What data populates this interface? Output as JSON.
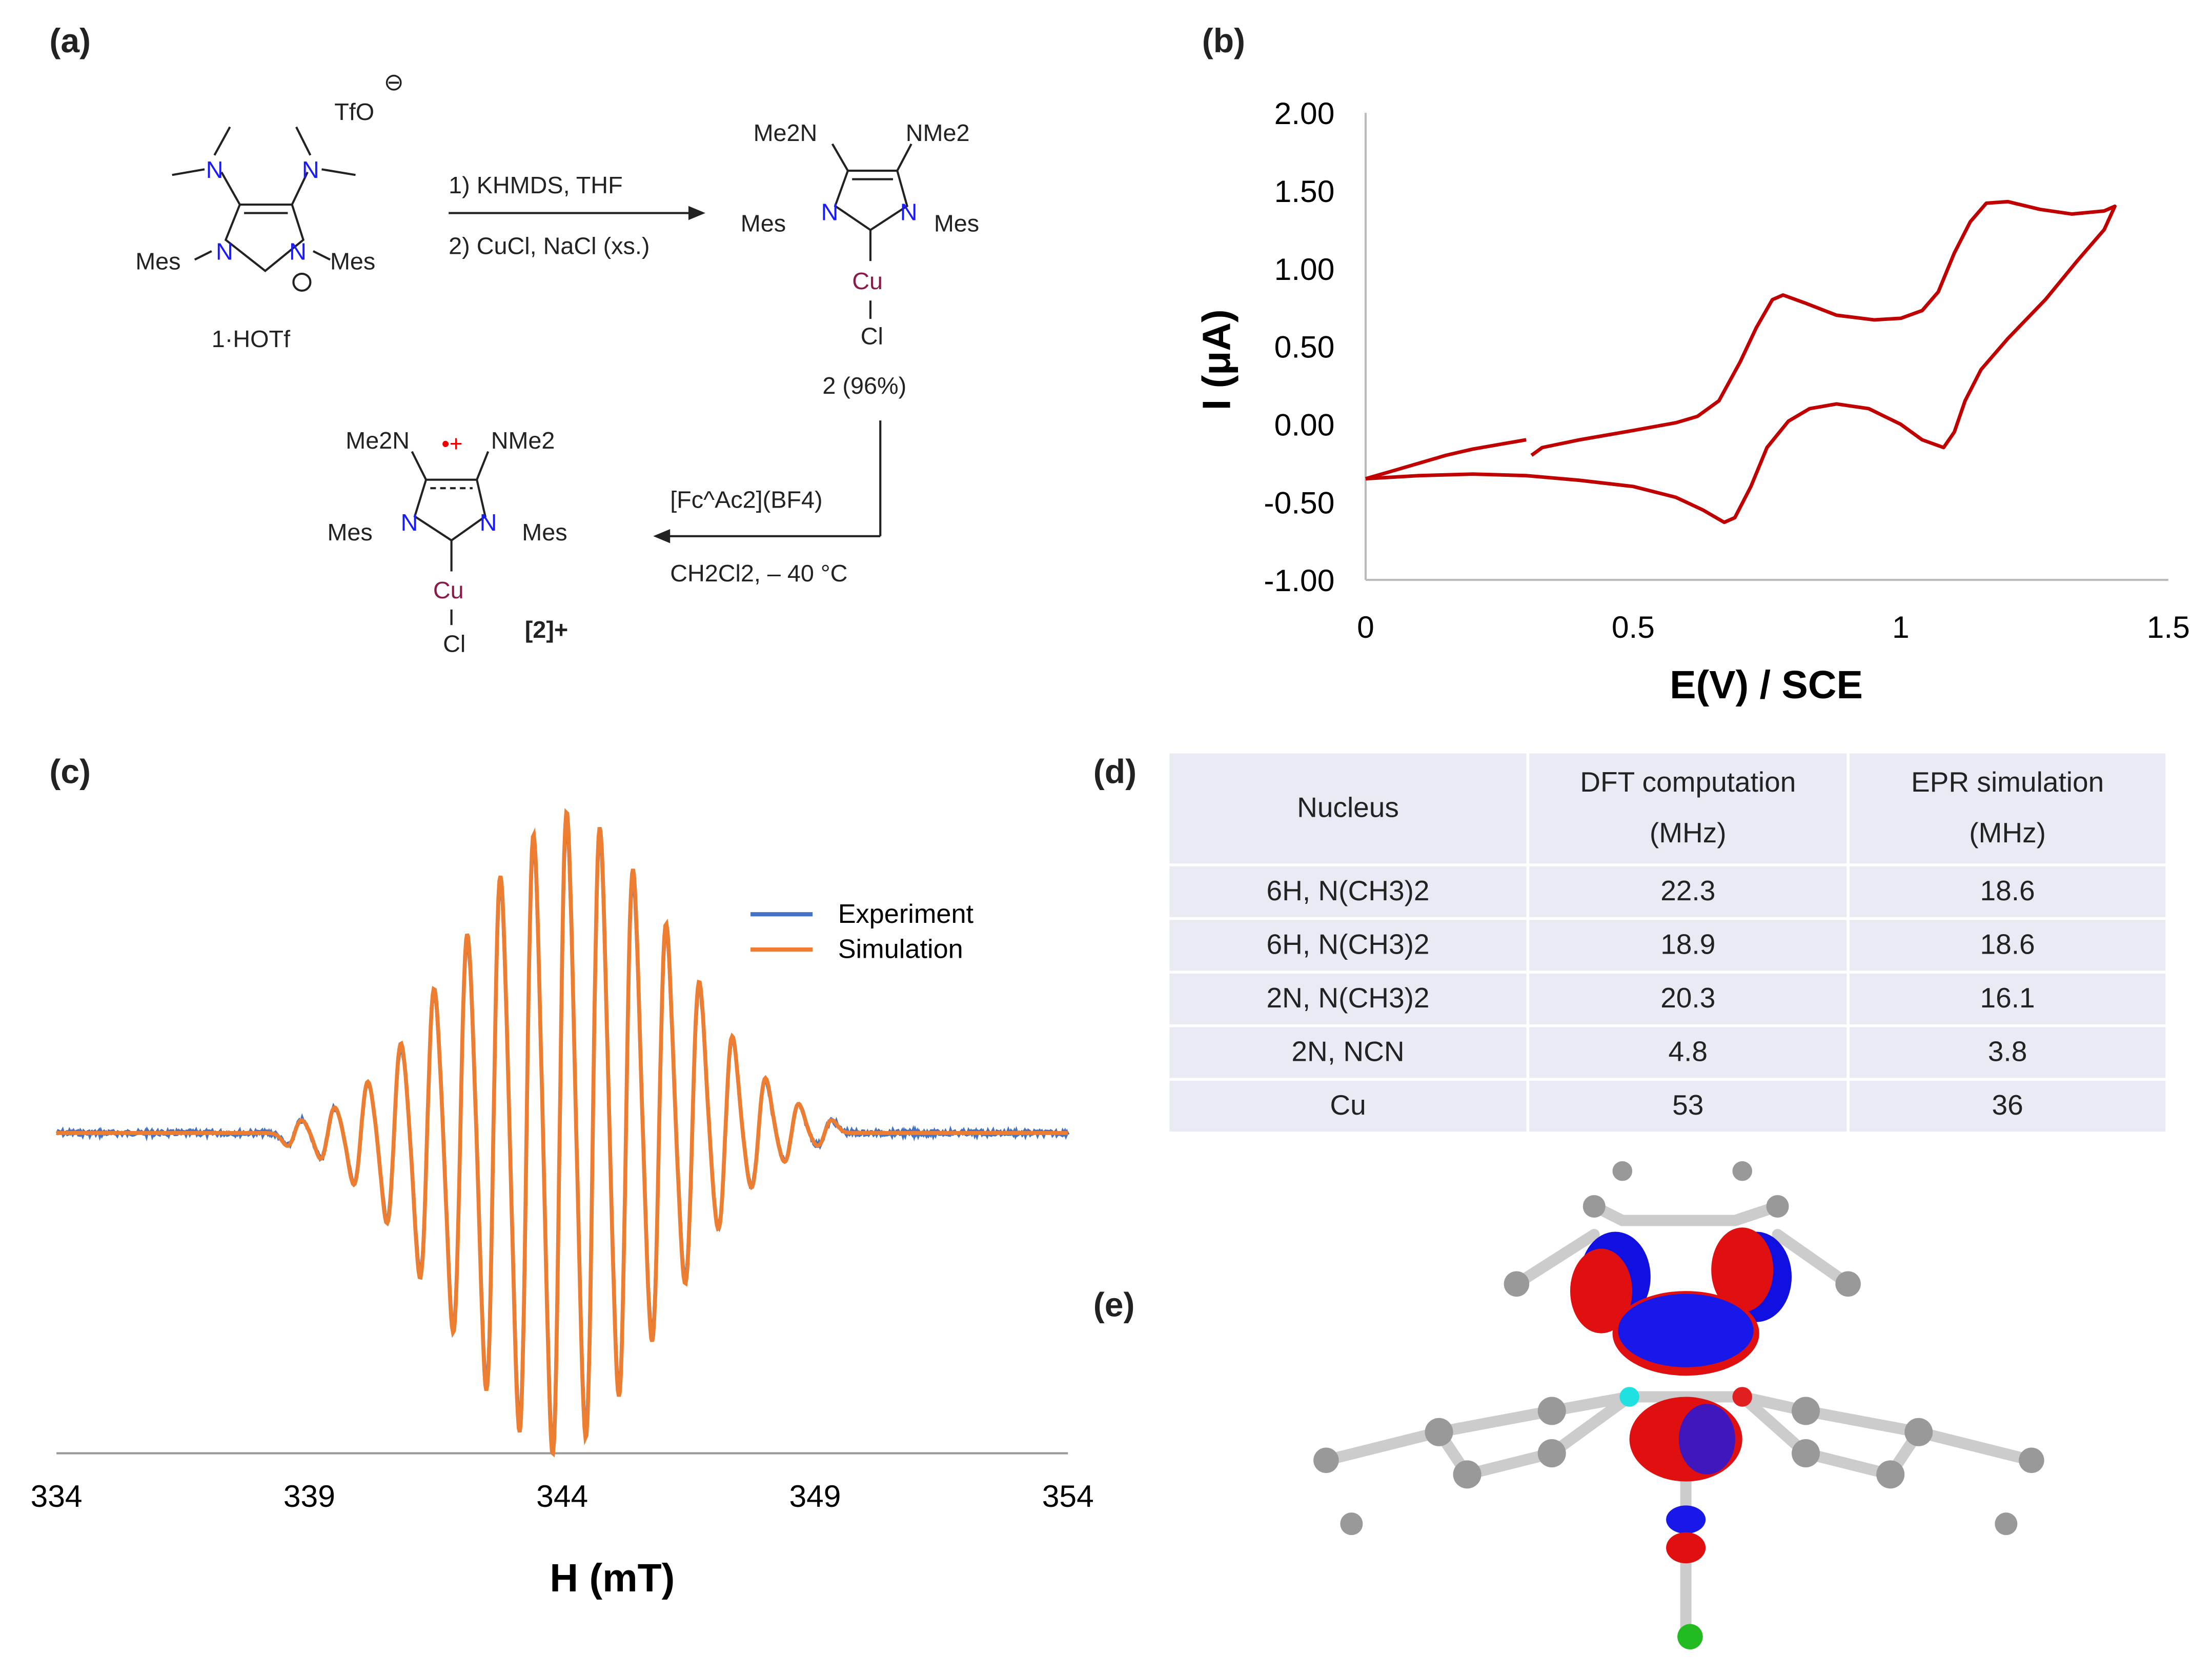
{
  "panel_labels": {
    "a": "(a)",
    "b": "(b)",
    "c": "(c)",
    "d": "(d)",
    "e": "(e)"
  },
  "scheme": {
    "compound1_label": "1·HOTf",
    "counterion": "TfO",
    "step1": "1) KHMDS, THF",
    "step2": "2) CuCl, NaCl (xs.)",
    "compound2_label": "2 (96%)",
    "oxidant": "[Fc^Ac2](BF4)",
    "conditions": "CH2Cl2, – 40 °C",
    "compound3_label": "[2]+",
    "atoms": {
      "N": "N",
      "Mes": "Mes",
      "Me2N": "Me2N",
      "NMe2": "NMe2",
      "Cu": "Cu",
      "Cl": "Cl"
    }
  },
  "chart_data": [
    {
      "type": "line",
      "title": "",
      "xlabel": "E(V) / SCE",
      "ylabel": "I (μA)",
      "xlim": [
        0,
        1.5
      ],
      "ylim": [
        -1.0,
        2.0
      ],
      "xticks": [
        "0",
        "0.5",
        "1",
        "1.5"
      ],
      "yticks": [
        "2.00",
        "1.50",
        "1.00",
        "0.50",
        "0.00",
        "-0.50",
        "-1.00"
      ],
      "color": "#c00000",
      "series": [
        {
          "name": "segment-1",
          "x": [
            0,
            0.05,
            0.1,
            0.15,
            0.2,
            0.25,
            0.3
          ],
          "y": [
            -0.35,
            -0.3,
            -0.25,
            -0.2,
            -0.16,
            -0.13,
            -0.1
          ]
        },
        {
          "name": "segment-2",
          "x": [
            0.31,
            0.33,
            0.4,
            0.5,
            0.58,
            0.62,
            0.66,
            0.7,
            0.73,
            0.76,
            0.78,
            0.82,
            0.88,
            0.95,
            1.0,
            1.04,
            1.07,
            1.1,
            1.13,
            1.16,
            1.2,
            1.26,
            1.32,
            1.38,
            1.4,
            1.38,
            1.33,
            1.27,
            1.2,
            1.15,
            1.12,
            1.1,
            1.08,
            1.04,
            1.0,
            0.94,
            0.88,
            0.83,
            0.79,
            0.75,
            0.72,
            0.69,
            0.67,
            0.63,
            0.58,
            0.5,
            0.4,
            0.3,
            0.2,
            0.1,
            0
          ],
          "y": [
            -0.2,
            -0.15,
            -0.1,
            -0.04,
            0.01,
            0.05,
            0.15,
            0.4,
            0.62,
            0.8,
            0.83,
            0.78,
            0.7,
            0.67,
            0.68,
            0.73,
            0.85,
            1.1,
            1.3,
            1.42,
            1.43,
            1.38,
            1.35,
            1.37,
            1.4,
            1.25,
            1.05,
            0.8,
            0.55,
            0.35,
            0.15,
            -0.05,
            -0.15,
            -0.1,
            0.0,
            0.1,
            0.13,
            0.1,
            0.02,
            -0.15,
            -0.4,
            -0.6,
            -0.63,
            -0.55,
            -0.47,
            -0.4,
            -0.36,
            -0.33,
            -0.32,
            -0.33,
            -0.35
          ]
        }
      ]
    },
    {
      "type": "line",
      "title": "",
      "xlabel": "H (mT)",
      "ylabel": "",
      "xlim": [
        334,
        354
      ],
      "xticks": [
        "334",
        "339",
        "344",
        "349",
        "354"
      ],
      "legend": {
        "placement": "top-right",
        "entries": [
          "Experiment",
          "Simulation"
        ]
      },
      "series": [
        {
          "name": "Experiment",
          "color": "#4472c4"
        },
        {
          "name": "Simulation",
          "color": "#ed7d31"
        }
      ],
      "line_center_mT": 343.95,
      "line_spacing_mT": 0.655,
      "relative_intensities": [
        0.04,
        0.08,
        0.16,
        0.28,
        0.45,
        0.62,
        0.8,
        0.93,
        1.0,
        0.95,
        0.82,
        0.65,
        0.47,
        0.3,
        0.17,
        0.09,
        0.04
      ]
    }
  ],
  "table": {
    "headers": [
      [
        "Nucleus"
      ],
      [
        "DFT computation",
        "(MHz)"
      ],
      [
        "EPR simulation",
        "(MHz)"
      ]
    ],
    "rows": [
      {
        "nucleus": "6H, N(CH3)2",
        "dft": "22.3",
        "epr": "18.6"
      },
      {
        "nucleus": "6H, N(CH3)2",
        "dft": "18.9",
        "epr": "18.6"
      },
      {
        "nucleus": "2N, N(CH3)2",
        "dft": "20.3",
        "epr": "16.1"
      },
      {
        "nucleus": "2N, NCN",
        "dft": "4.8",
        "epr": "3.8"
      },
      {
        "nucleus": "Cu",
        "dft": "53",
        "epr": "36"
      }
    ]
  }
}
